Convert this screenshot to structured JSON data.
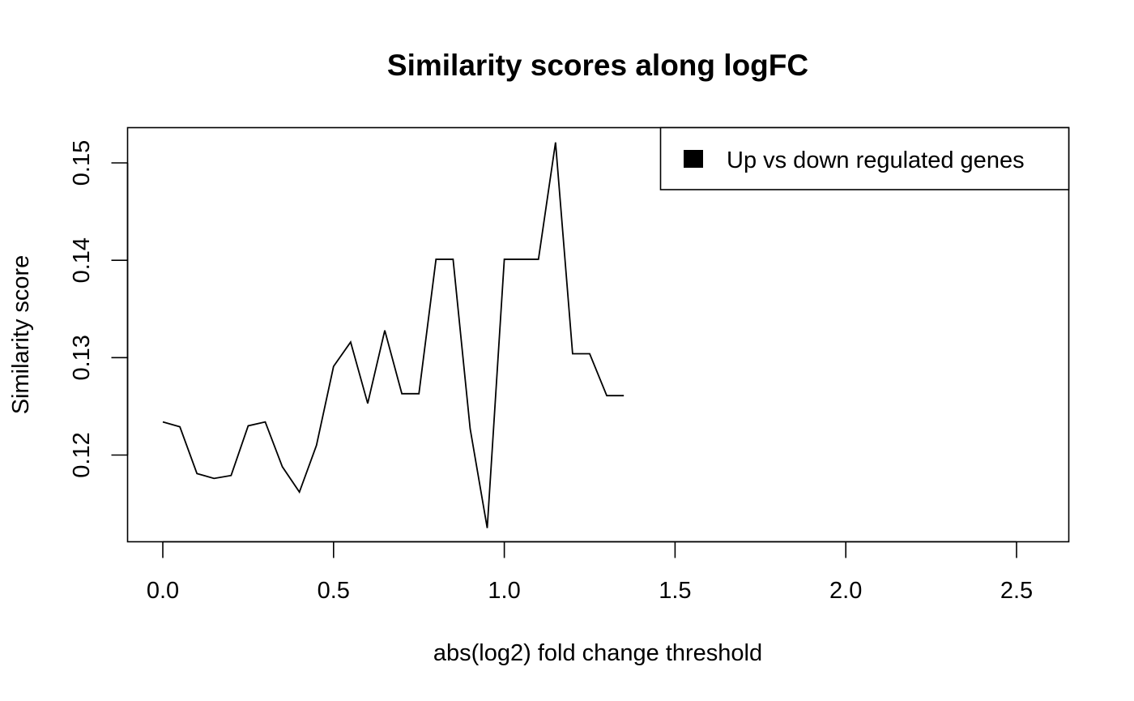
{
  "chart_data": {
    "type": "line",
    "title": "Similarity scores along logFC",
    "xlabel": "abs(log2) fold change threshold",
    "ylabel": "Similarity score",
    "xlim": [
      0.0,
      2.5
    ],
    "ylim": [
      0.112,
      0.152
    ],
    "x_ticks": [
      "0.0",
      "0.5",
      "1.0",
      "1.5",
      "2.0",
      "2.5"
    ],
    "y_ticks": [
      "0.12",
      "0.13",
      "0.14",
      "0.15"
    ],
    "grid": false,
    "legend_position": "top-right",
    "series": [
      {
        "name": "Up vs down regulated genes",
        "color": "#000000",
        "x": [
          0.0,
          0.05,
          0.1,
          0.15,
          0.2,
          0.25,
          0.3,
          0.35,
          0.4,
          0.45,
          0.5,
          0.55,
          0.6,
          0.65,
          0.7,
          0.75,
          0.8,
          0.85,
          0.9,
          0.95,
          1.0,
          1.05,
          1.1,
          1.15,
          1.2,
          1.25,
          1.3,
          1.35
        ],
        "y": [
          0.1234,
          0.1229,
          0.1181,
          0.1176,
          0.1179,
          0.123,
          0.1234,
          0.1188,
          0.1162,
          0.121,
          0.1291,
          0.1316,
          0.1253,
          0.1328,
          0.1263,
          0.1263,
          0.1401,
          0.1401,
          0.1227,
          0.1125,
          0.1401,
          0.1401,
          0.1401,
          0.1521,
          0.1304,
          0.1304,
          0.1261,
          0.1261
        ]
      }
    ]
  }
}
